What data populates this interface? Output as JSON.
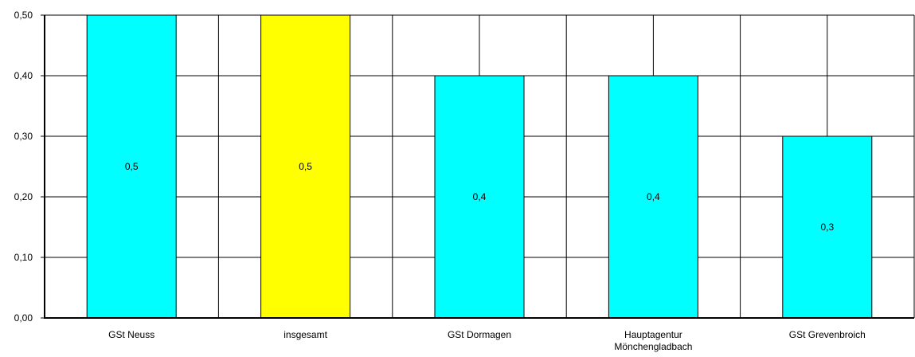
{
  "chart_data": {
    "type": "bar",
    "title": "",
    "xlabel": "",
    "ylabel": "",
    "ylim": [
      0,
      0.5
    ],
    "yticks": [
      {
        "value": 0.0,
        "label": "0,00"
      },
      {
        "value": 0.1,
        "label": "0,10"
      },
      {
        "value": 0.2,
        "label": "0,20"
      },
      {
        "value": 0.3,
        "label": "0,30"
      },
      {
        "value": 0.4,
        "label": "0,40"
      },
      {
        "value": 0.5,
        "label": "0,50"
      }
    ],
    "grid": true,
    "legend": "none",
    "categories": [
      [
        "GSt Neuss"
      ],
      [
        "insgesamt"
      ],
      [
        "GSt Dormagen"
      ],
      [
        "Hauptagentur",
        "Mönchengladbach"
      ],
      [
        "GSt Grevenbroich"
      ]
    ],
    "values": [
      0.5,
      0.5,
      0.4,
      0.4,
      0.3
    ],
    "value_labels": [
      "0,5",
      "0,5",
      "0,4",
      "0,4",
      "0,3"
    ],
    "colors": [
      "#00ffff",
      "#ffff00",
      "#00ffff",
      "#00ffff",
      "#00ffff"
    ]
  }
}
